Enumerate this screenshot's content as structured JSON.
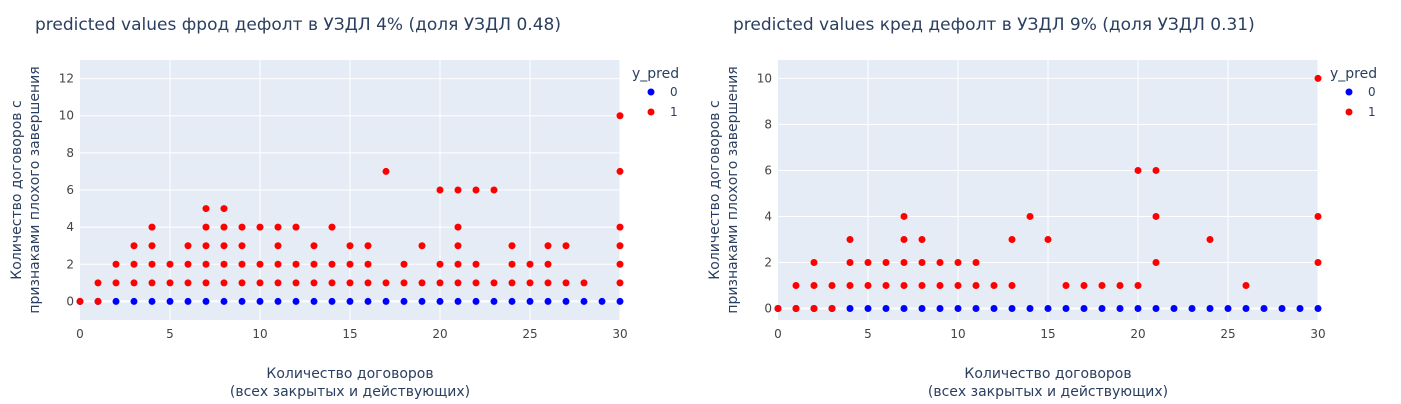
{
  "chart_data": [
    {
      "type": "scatter",
      "title": "predicted values фрод дефолт в УЗДЛ 4% (доля УЗДЛ 0.48)",
      "xlabel": [
        "Количество договоров",
        "(всех закрытых и действующих)"
      ],
      "ylabel": [
        "Количество договоров с",
        "признаками плохого завершения"
      ],
      "xlim": [
        0,
        30
      ],
      "ylim": [
        -1,
        13
      ],
      "xticks": [
        0,
        5,
        10,
        15,
        20,
        25,
        30
      ],
      "yticks": [
        0,
        2,
        4,
        6,
        8,
        10,
        12
      ],
      "grid": true,
      "legend": {
        "title": "y_pred",
        "position": "top-right"
      },
      "series": [
        {
          "name": "0",
          "color": "#0000ff",
          "points": [
            [
              0,
              0
            ],
            [
              1,
              0
            ],
            [
              2,
              0
            ],
            [
              3,
              0
            ],
            [
              4,
              0
            ],
            [
              5,
              0
            ],
            [
              6,
              0
            ],
            [
              7,
              0
            ],
            [
              8,
              0
            ],
            [
              9,
              0
            ],
            [
              10,
              0
            ],
            [
              11,
              0
            ],
            [
              12,
              0
            ],
            [
              13,
              0
            ],
            [
              14,
              0
            ],
            [
              15,
              0
            ],
            [
              16,
              0
            ],
            [
              17,
              0
            ],
            [
              18,
              0
            ],
            [
              19,
              0
            ],
            [
              20,
              0
            ],
            [
              21,
              0
            ],
            [
              22,
              0
            ],
            [
              23,
              0
            ],
            [
              24,
              0
            ],
            [
              25,
              0
            ],
            [
              26,
              0
            ],
            [
              27,
              0
            ],
            [
              28,
              0
            ],
            [
              29,
              0
            ],
            [
              30,
              0
            ]
          ]
        },
        {
          "name": "1",
          "color": "#ff0000",
          "points": [
            [
              0,
              0
            ],
            [
              1,
              0
            ],
            [
              1,
              1
            ],
            [
              2,
              1
            ],
            [
              2,
              2
            ],
            [
              3,
              1
            ],
            [
              3,
              2
            ],
            [
              3,
              3
            ],
            [
              4,
              1
            ],
            [
              4,
              2
            ],
            [
              4,
              3
            ],
            [
              4,
              4
            ],
            [
              5,
              1
            ],
            [
              5,
              2
            ],
            [
              6,
              1
            ],
            [
              6,
              2
            ],
            [
              6,
              3
            ],
            [
              7,
              1
            ],
            [
              7,
              2
            ],
            [
              7,
              3
            ],
            [
              7,
              4
            ],
            [
              7,
              5
            ],
            [
              8,
              1
            ],
            [
              8,
              2
            ],
            [
              8,
              3
            ],
            [
              8,
              4
            ],
            [
              8,
              5
            ],
            [
              9,
              1
            ],
            [
              9,
              2
            ],
            [
              9,
              3
            ],
            [
              9,
              4
            ],
            [
              10,
              1
            ],
            [
              10,
              2
            ],
            [
              10,
              4
            ],
            [
              11,
              1
            ],
            [
              11,
              2
            ],
            [
              11,
              3
            ],
            [
              11,
              4
            ],
            [
              12,
              1
            ],
            [
              12,
              2
            ],
            [
              12,
              4
            ],
            [
              13,
              1
            ],
            [
              13,
              2
            ],
            [
              13,
              3
            ],
            [
              14,
              1
            ],
            [
              14,
              2
            ],
            [
              14,
              4
            ],
            [
              15,
              1
            ],
            [
              15,
              2
            ],
            [
              15,
              3
            ],
            [
              16,
              1
            ],
            [
              16,
              2
            ],
            [
              16,
              3
            ],
            [
              17,
              1
            ],
            [
              17,
              7
            ],
            [
              18,
              1
            ],
            [
              18,
              2
            ],
            [
              19,
              1
            ],
            [
              19,
              3
            ],
            [
              20,
              1
            ],
            [
              20,
              2
            ],
            [
              20,
              6
            ],
            [
              21,
              1
            ],
            [
              21,
              2
            ],
            [
              21,
              3
            ],
            [
              21,
              4
            ],
            [
              21,
              6
            ],
            [
              22,
              1
            ],
            [
              22,
              2
            ],
            [
              22,
              6
            ],
            [
              23,
              1
            ],
            [
              23,
              6
            ],
            [
              24,
              1
            ],
            [
              24,
              2
            ],
            [
              24,
              3
            ],
            [
              25,
              1
            ],
            [
              25,
              2
            ],
            [
              26,
              1
            ],
            [
              26,
              2
            ],
            [
              26,
              3
            ],
            [
              27,
              1
            ],
            [
              27,
              3
            ],
            [
              28,
              1
            ],
            [
              30,
              1
            ],
            [
              30,
              2
            ],
            [
              30,
              3
            ],
            [
              30,
              4
            ],
            [
              30,
              7
            ],
            [
              30,
              10
            ]
          ]
        }
      ]
    },
    {
      "type": "scatter",
      "title": "predicted values кред дефолт в УЗДЛ 9% (доля УЗДЛ 0.31)",
      "xlabel": [
        "Количество договоров",
        "(всех закрытых и действующих)"
      ],
      "ylabel": [
        "Количество договоров с",
        "признаками плохого завершения"
      ],
      "xlim": [
        0,
        30
      ],
      "ylim": [
        -0.5,
        10.8
      ],
      "xticks": [
        0,
        5,
        10,
        15,
        20,
        25,
        30
      ],
      "yticks": [
        0,
        2,
        4,
        6,
        8,
        10
      ],
      "grid": true,
      "legend": {
        "title": "y_pred",
        "position": "top-right"
      },
      "series": [
        {
          "name": "0",
          "color": "#0000ff",
          "points": [
            [
              0,
              0
            ],
            [
              1,
              0
            ],
            [
              2,
              0
            ],
            [
              3,
              0
            ],
            [
              4,
              0
            ],
            [
              5,
              0
            ],
            [
              6,
              0
            ],
            [
              7,
              0
            ],
            [
              8,
              0
            ],
            [
              9,
              0
            ],
            [
              10,
              0
            ],
            [
              11,
              0
            ],
            [
              12,
              0
            ],
            [
              13,
              0
            ],
            [
              14,
              0
            ],
            [
              15,
              0
            ],
            [
              16,
              0
            ],
            [
              17,
              0
            ],
            [
              18,
              0
            ],
            [
              19,
              0
            ],
            [
              20,
              0
            ],
            [
              21,
              0
            ],
            [
              22,
              0
            ],
            [
              23,
              0
            ],
            [
              24,
              0
            ],
            [
              25,
              0
            ],
            [
              26,
              0
            ],
            [
              27,
              0
            ],
            [
              28,
              0
            ],
            [
              29,
              0
            ],
            [
              30,
              0
            ]
          ]
        },
        {
          "name": "1",
          "color": "#ff0000",
          "points": [
            [
              0,
              0
            ],
            [
              1,
              0
            ],
            [
              1,
              1
            ],
            [
              2,
              0
            ],
            [
              2,
              1
            ],
            [
              2,
              2
            ],
            [
              3,
              0
            ],
            [
              3,
              1
            ],
            [
              4,
              1
            ],
            [
              4,
              2
            ],
            [
              4,
              3
            ],
            [
              5,
              1
            ],
            [
              5,
              2
            ],
            [
              6,
              1
            ],
            [
              6,
              2
            ],
            [
              7,
              1
            ],
            [
              7,
              2
            ],
            [
              7,
              3
            ],
            [
              7,
              4
            ],
            [
              8,
              1
            ],
            [
              8,
              2
            ],
            [
              8,
              3
            ],
            [
              9,
              1
            ],
            [
              9,
              2
            ],
            [
              10,
              1
            ],
            [
              10,
              2
            ],
            [
              11,
              1
            ],
            [
              11,
              2
            ],
            [
              12,
              1
            ],
            [
              13,
              1
            ],
            [
              13,
              3
            ],
            [
              14,
              4
            ],
            [
              15,
              3
            ],
            [
              16,
              1
            ],
            [
              17,
              1
            ],
            [
              18,
              1
            ],
            [
              19,
              1
            ],
            [
              20,
              1
            ],
            [
              20,
              6
            ],
            [
              21,
              2
            ],
            [
              21,
              4
            ],
            [
              21,
              6
            ],
            [
              24,
              3
            ],
            [
              26,
              1
            ],
            [
              30,
              2
            ],
            [
              30,
              4
            ],
            [
              30,
              10
            ]
          ]
        }
      ]
    }
  ]
}
